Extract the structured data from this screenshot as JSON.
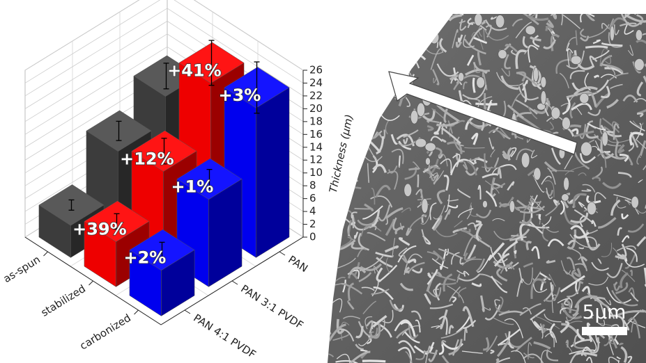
{
  "chart_data": {
    "type": "bar3d",
    "categories": [
      "PAN",
      "PAN 3:1 PVDF",
      "PAN 4:1 PVDF"
    ],
    "series": [
      {
        "name": "as-spun",
        "color": "#3c3c3c",
        "values": [
          16,
          12,
          5
        ],
        "errors": [
          2,
          1.5,
          0.8
        ]
      },
      {
        "name": "stabilized",
        "color": "#ee0000",
        "values": [
          22.6,
          13.4,
          7
        ],
        "errors": [
          3.5,
          2,
          1.2
        ],
        "annotations": [
          "+41%",
          "+12%",
          "+39%"
        ]
      },
      {
        "name": "carbonized",
        "color": "#0000ee",
        "values": [
          23.3,
          13.6,
          7.1
        ],
        "errors": [
          4,
          1.5,
          1.2
        ],
        "annotations": [
          "+3%",
          "+1%",
          "+2%"
        ]
      }
    ],
    "zlabel": "Thickness (µm)",
    "zlim": [
      0,
      26
    ],
    "zticks": [
      0,
      2,
      4,
      6,
      8,
      10,
      12,
      14,
      16,
      18,
      20,
      22,
      24,
      26
    ],
    "grid": true
  },
  "micrograph": {
    "scale_bar": "5µm"
  }
}
